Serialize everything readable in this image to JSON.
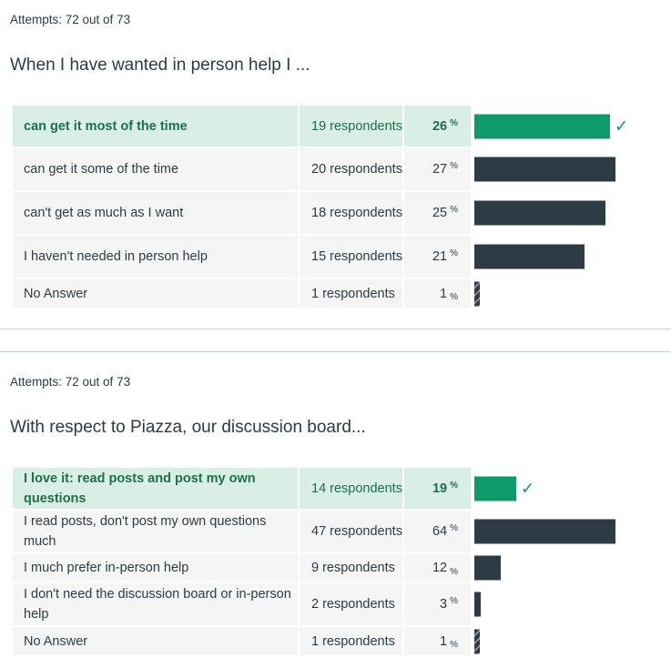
{
  "questions": [
    {
      "attempts": "Attempts: 72 out of 73",
      "title": "When I have wanted in person help I ...",
      "rows": [
        {
          "answer": "can get it most of the time",
          "respondents": "19 respondents",
          "percent": "26",
          "correct": true
        },
        {
          "answer": "can get it some of the time",
          "respondents": "20 respondents",
          "percent": "27",
          "correct": false
        },
        {
          "answer": "can't get as much as I want",
          "respondents": "18 respondents",
          "percent": "25",
          "correct": false
        },
        {
          "answer": "I haven't needed in person help",
          "respondents": "15 respondents",
          "percent": "21",
          "correct": false
        },
        {
          "answer": "No Answer",
          "respondents": "1 respondents",
          "percent": "1",
          "correct": false
        }
      ]
    },
    {
      "attempts": "Attempts: 72 out of 73",
      "title": "With respect to Piazza, our discussion board...",
      "rows": [
        {
          "answer": "I love it: read posts and post my own questions",
          "respondents": "14 respondents",
          "percent": "19",
          "correct": true
        },
        {
          "answer": "I read posts, don't post my own questions much",
          "respondents": "47 respondents",
          "percent": "64",
          "correct": false
        },
        {
          "answer": "I much prefer in-person help",
          "respondents": "9 respondents",
          "percent": "12",
          "correct": false
        },
        {
          "answer": "I don't need the discussion board or in-person help",
          "respondents": "2 respondents",
          "percent": "3",
          "correct": false
        },
        {
          "answer": "No Answer",
          "respondents": "1 respondents",
          "percent": "1",
          "correct": false
        }
      ]
    }
  ],
  "percent_sign": "%",
  "check_glyph": "✓",
  "colors": {
    "correct_bar": "#0e9a6b",
    "bar": "#2d3b45",
    "correct_row": "#d9efe6",
    "row": "#f5f5f5"
  }
}
